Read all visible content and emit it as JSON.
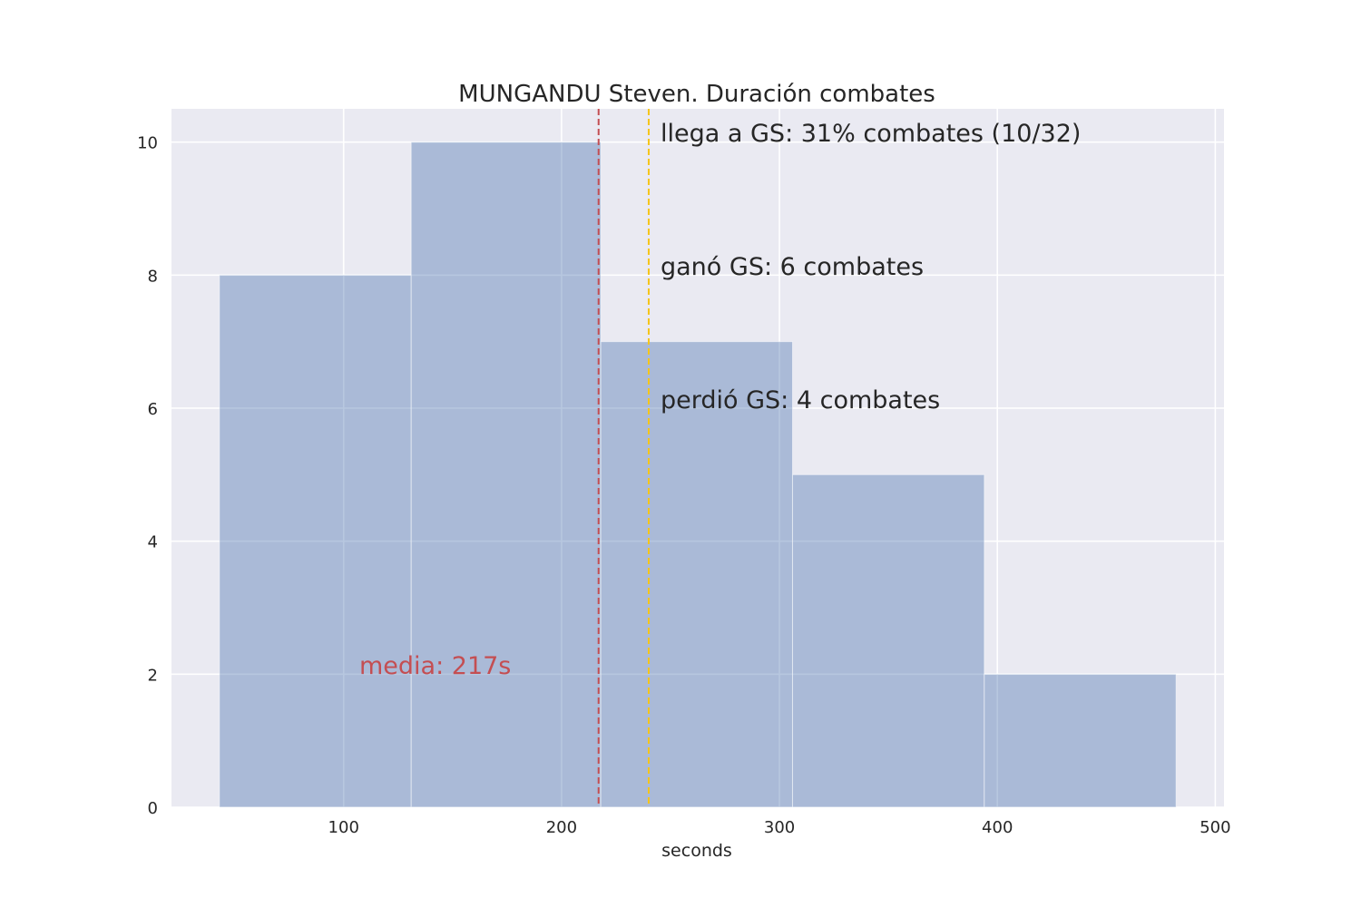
{
  "chart_data": {
    "type": "bar",
    "title": "MUNGANDU Steven. Duración combates",
    "xlabel": "seconds",
    "ylabel": "",
    "xlim": [
      21,
      504
    ],
    "ylim": [
      0,
      10.5
    ],
    "xticks": [
      100,
      200,
      300,
      400,
      500
    ],
    "yticks": [
      0,
      2,
      4,
      6,
      8,
      10
    ],
    "grid": true,
    "bins": [
      {
        "x0": 43,
        "x1": 131,
        "count": 8
      },
      {
        "x0": 131,
        "x1": 218,
        "count": 10
      },
      {
        "x0": 218,
        "x1": 306,
        "count": 7
      },
      {
        "x0": 306,
        "x1": 394,
        "count": 5
      },
      {
        "x0": 394,
        "x1": 482,
        "count": 2
      }
    ],
    "vlines": [
      {
        "name": "mean-line",
        "x": 217,
        "color": "#c44e52"
      },
      {
        "name": "gs-line",
        "x": 240,
        "color": "#f5c518"
      }
    ],
    "annotations": {
      "gs_reach": "llega a GS: 31% combates (10/32)",
      "gs_won": "ganó GS: 6 combates",
      "gs_lost": "perdió GS: 4 combates",
      "mean": "media: 217s"
    },
    "colors": {
      "bar": "#4c72b0",
      "background": "#eaeaf2",
      "grid": "#ffffff",
      "mean": "#c44e52",
      "gs": "#f5c518"
    }
  }
}
